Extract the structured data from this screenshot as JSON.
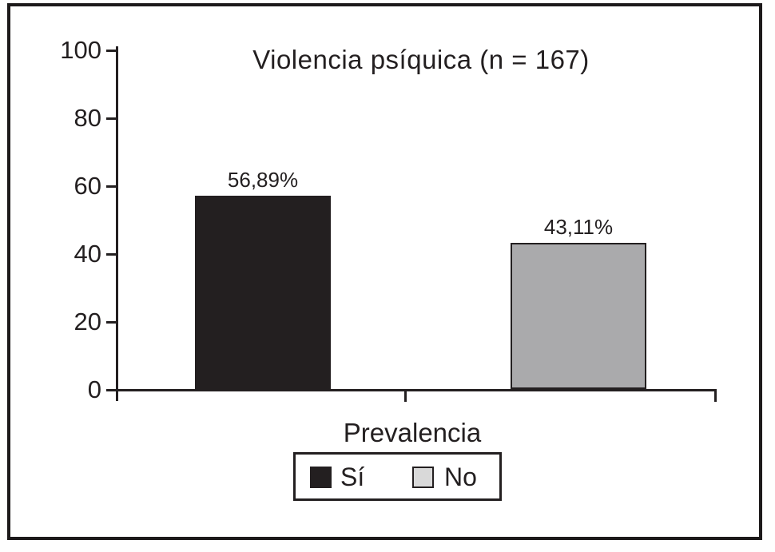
{
  "chart_data": {
    "type": "bar",
    "title": "Violencia psíquica (n = 167)",
    "xlabel": "Prevalencia",
    "ylabel": "",
    "ylim": [
      0,
      100
    ],
    "yticks": [
      0,
      20,
      40,
      60,
      80,
      100
    ],
    "categories": [
      "Sí",
      "No"
    ],
    "values": [
      56.89,
      43.11
    ],
    "value_labels": [
      "56,89%",
      "43,11%"
    ],
    "bar_colors": [
      "#231f20",
      "#aaaaac"
    ],
    "bar_border_color": "#231f20",
    "legend": [
      {
        "label": "Sí",
        "color": "#231f20"
      },
      {
        "label": "No",
        "color": "#d9d9d9"
      }
    ],
    "legend_position": "bottom",
    "grid": false,
    "ink_color": "#231f20"
  }
}
